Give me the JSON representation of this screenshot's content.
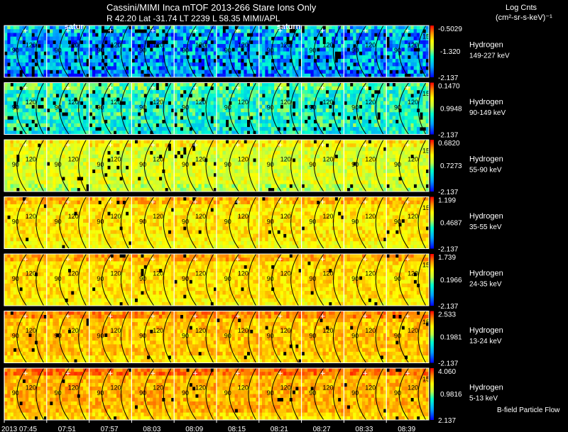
{
  "header": {
    "title_line1": "Cassini/MIMI Inca mTOF  2013-266    Stare    Ions Only",
    "title_line2": "R          42.20 Lat -31.74 LT 2239 L          58.35  MIMI/APL",
    "units_line1": "Log Cnts",
    "units_line2": "(cm²-sr-s-keV)⁻¹",
    "footer": "B-field Particle Flow"
  },
  "chart_data": {
    "type": "heatmap",
    "time_ticks": [
      "2013 07:45",
      "07:51",
      "07:57",
      "08:03",
      "08:09",
      "08:15",
      "08:21",
      "08:27",
      "08:33",
      "08:39"
    ],
    "frame_contour_labels": [
      "90",
      "120"
    ],
    "frame_overlay_labels": {
      "1": "satur",
      "6": "saturn"
    },
    "partial_label": "15",
    "channels": [
      {
        "species": "Hydrogen",
        "energy": "149-227 keV",
        "cbar_max": "-0.5029",
        "cbar_mid": "-1.320",
        "cbar_min": "-2.137",
        "mean_level": 0.22,
        "spread": 0.22,
        "empty_fraction": 0.1
      },
      {
        "species": "Hydrogen",
        "energy": "90-149 keV",
        "cbar_max": "0.1470",
        "cbar_mid": "0.9948",
        "cbar_min": "-2.137",
        "mean_level": 0.4,
        "spread": 0.14,
        "empty_fraction": 0.06
      },
      {
        "species": "Hydrogen",
        "energy": "55-90 keV",
        "cbar_max": "0.6820",
        "cbar_mid": "0.7273",
        "cbar_min": "-2.137",
        "mean_level": 0.63,
        "spread": 0.11,
        "empty_fraction": 0.03
      },
      {
        "species": "Hydrogen",
        "energy": "35-55 keV",
        "cbar_max": "1.199",
        "cbar_mid": "0.4687",
        "cbar_min": "-2.137",
        "mean_level": 0.72,
        "spread": 0.09,
        "empty_fraction": 0.02
      },
      {
        "species": "Hydrogen",
        "energy": "24-35 keV",
        "cbar_max": "1.739",
        "cbar_mid": "0.1966",
        "cbar_min": "-2.137",
        "mean_level": 0.74,
        "spread": 0.08,
        "empty_fraction": 0.02
      },
      {
        "species": "Hydrogen",
        "energy": "13-24 keV",
        "cbar_max": "2.533",
        "cbar_mid": "0.1981",
        "cbar_min": "-2.137",
        "mean_level": 0.78,
        "spread": 0.08,
        "empty_fraction": 0.02
      },
      {
        "species": "Hydrogen",
        "energy": "5-13 keV",
        "cbar_max": "4.060",
        "cbar_mid": "0.9816",
        "cbar_min": "2.137",
        "mean_level": 0.8,
        "spread": 0.08,
        "empty_fraction": 0.02
      }
    ]
  }
}
